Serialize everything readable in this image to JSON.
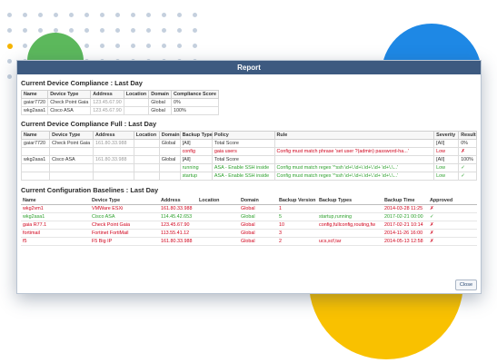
{
  "dialog": {
    "title": "Report",
    "close_label": "Close"
  },
  "section1": {
    "title": "Current Device Compliance : Last Day",
    "headers": [
      "Name",
      "Device Type",
      "Address",
      "Location",
      "Domain",
      "Compliance Score"
    ],
    "rows": [
      [
        "gaiar7720",
        "Check Point Gaia",
        "123.45.67.90",
        "",
        "Global",
        "0%"
      ],
      [
        "wkg2asa1",
        "Cisco ASA",
        "123.45.67.90",
        "",
        "Global",
        "100%"
      ]
    ]
  },
  "section2": {
    "title": "Current Device Compliance Full : Last Day",
    "headers": [
      "Name",
      "Device Type",
      "Address",
      "Location",
      "Domain",
      "Backup Type",
      "Policy",
      "Rule",
      "Severity",
      "Result"
    ],
    "rows": [
      [
        "gaiar7720",
        "Check Point Gaia",
        "161.80.33.988",
        "",
        "Global",
        "[All]",
        "Total Score",
        "",
        "[All]",
        "0%"
      ],
      [
        "",
        "",
        "",
        "",
        "",
        "config",
        "gaia users",
        "Config must match phrase 'set user ?(admin) password-ha...'",
        "Low",
        "✗"
      ],
      [
        "wkg2asa1",
        "Cisco ASA",
        "161.80.33.988",
        "",
        "Global",
        "[All]",
        "Total Score",
        "",
        "[All]",
        "100%"
      ],
      [
        "",
        "",
        "",
        "",
        "",
        "running",
        "ASA - Enable SSH inside",
        "Config must match regex '^ssh \\d+\\.\\d+\\.\\d+\\.\\d+ \\d+\\.\\...'",
        "Low",
        "✓"
      ],
      [
        "",
        "",
        "",
        "",
        "",
        "startup",
        "ASA - Enable SSH inside",
        "Config must match regex '^ssh \\d+\\.\\d+\\.\\d+\\.\\d+ \\d+\\.\\...'",
        "Low",
        "✓"
      ]
    ]
  },
  "section3": {
    "title": "Current Configuration Baselines : Last Day",
    "headers": [
      "Name",
      "Device Type",
      "Address",
      "Location",
      "Domain",
      "Backup Version",
      "Backup Types",
      "Backup Time",
      "Approved"
    ],
    "rows": [
      [
        "wkg2vm1",
        "VMWare ESXi",
        "161.80.33.988",
        "",
        "Global",
        "1",
        "",
        "2014-03-28 11:25",
        "✗"
      ],
      [
        "wkg2asa1",
        "Cisco ASA",
        "114.45.42.653",
        "",
        "Global",
        "5",
        "startup,running",
        "2017-02-21 00:00",
        "✓"
      ],
      [
        "gaia R77.1",
        "Check Point Gaia",
        "123.45.67.90",
        "",
        "Global",
        "10",
        "config,fullconfig,routing,fw",
        "2017-02-21 10:14",
        "✗"
      ],
      [
        "fortimail",
        "Fortinet FortiMail",
        "113.55.41.12",
        "",
        "Global",
        "3",
        "",
        "2014-11-26 16:00",
        "✗"
      ],
      [
        "f5",
        "F5 Big IP",
        "161.80.33.988",
        "",
        "Global",
        "2",
        "ucs,scf,tar",
        "2014-05-13 12:58",
        "✗"
      ]
    ]
  },
  "colors": {
    "titlebar": "#3d5a80",
    "fail": "#d0021b",
    "pass": "#2ca02c",
    "blob_green": "#5cb85c",
    "blob_blue": "#1e88e5",
    "blob_yellow": "#f9c100"
  }
}
